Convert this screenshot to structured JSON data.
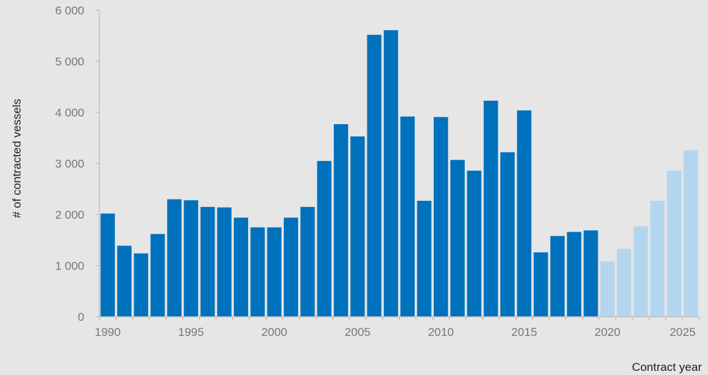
{
  "chart_data": {
    "type": "bar",
    "xlabel": "Contract year",
    "ylabel": "# of contracted vessels",
    "ylim": [
      0,
      6000
    ],
    "yticks": [
      0,
      1000,
      2000,
      3000,
      4000,
      5000,
      6000
    ],
    "ytick_labels": [
      "0",
      "1 000",
      "2 000",
      "3 000",
      "4 000",
      "5 000",
      "6 000"
    ],
    "xlim": [
      1989.5,
      2025.5
    ],
    "xticks": [
      1990,
      1995,
      2000,
      2005,
      2010,
      2015,
      2020,
      2025
    ],
    "xtick_labels": [
      "1990",
      "1995",
      "2000",
      "2005",
      "2010",
      "2015",
      "2020",
      "2025"
    ],
    "grid": false,
    "legend": "none",
    "colors": {
      "actual": "#0071bc",
      "forecast": "#b3d6ee",
      "axis": "#bbbbbb"
    },
    "series": [
      {
        "kind": "actual",
        "x": [
          1990,
          1991,
          1992,
          1993,
          1994,
          1995,
          1996,
          1997,
          1998,
          1999,
          2000,
          2001,
          2002,
          2003,
          2004,
          2005,
          2006,
          2007,
          2008,
          2009,
          2010,
          2011,
          2012,
          2013,
          2014,
          2015,
          2016,
          2017,
          2018,
          2019
        ],
        "values": [
          2020,
          1390,
          1240,
          1620,
          2300,
          2280,
          2150,
          2140,
          1940,
          1750,
          1750,
          1940,
          2150,
          3050,
          3770,
          3530,
          5520,
          5610,
          3920,
          2270,
          3910,
          3070,
          2860,
          4230,
          3220,
          4040,
          1260,
          1580,
          1660,
          1690
        ]
      },
      {
        "kind": "forecast",
        "x": [
          2020,
          2021,
          2022,
          2023,
          2024,
          2025
        ],
        "values": [
          1080,
          1330,
          1770,
          2270,
          2860,
          3260
        ]
      }
    ]
  }
}
